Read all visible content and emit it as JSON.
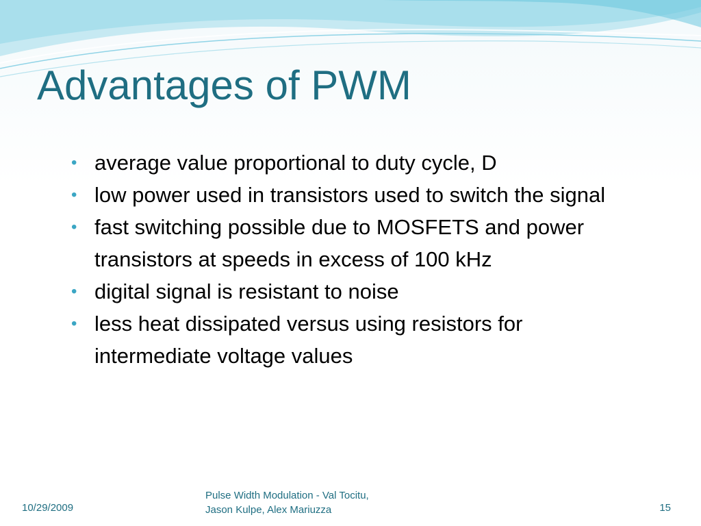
{
  "slide": {
    "title": "Advantages of PWM",
    "bullets": [
      "average value proportional to duty cycle, D",
      "low power used in transistors used to switch the signal",
      "fast switching possible due to MOSFETS and power transistors at speeds in excess of 100 kHz",
      "digital signal is resistant to noise",
      "less heat dissipated versus using resistors for intermediate voltage values"
    ],
    "bullet_symbol": "•"
  },
  "footer": {
    "date": "10/29/2009",
    "text_line1": "Pulse Width Modulation - Val Tocitu,",
    "text_line2": "Jason Kulpe, Alex Mariuzza",
    "page_number": "15"
  },
  "colors": {
    "title": "#1f6e82",
    "bullet": "#3ba6c4",
    "wave_light": "#bfe6f0",
    "wave_mid": "#7ecfe3"
  }
}
